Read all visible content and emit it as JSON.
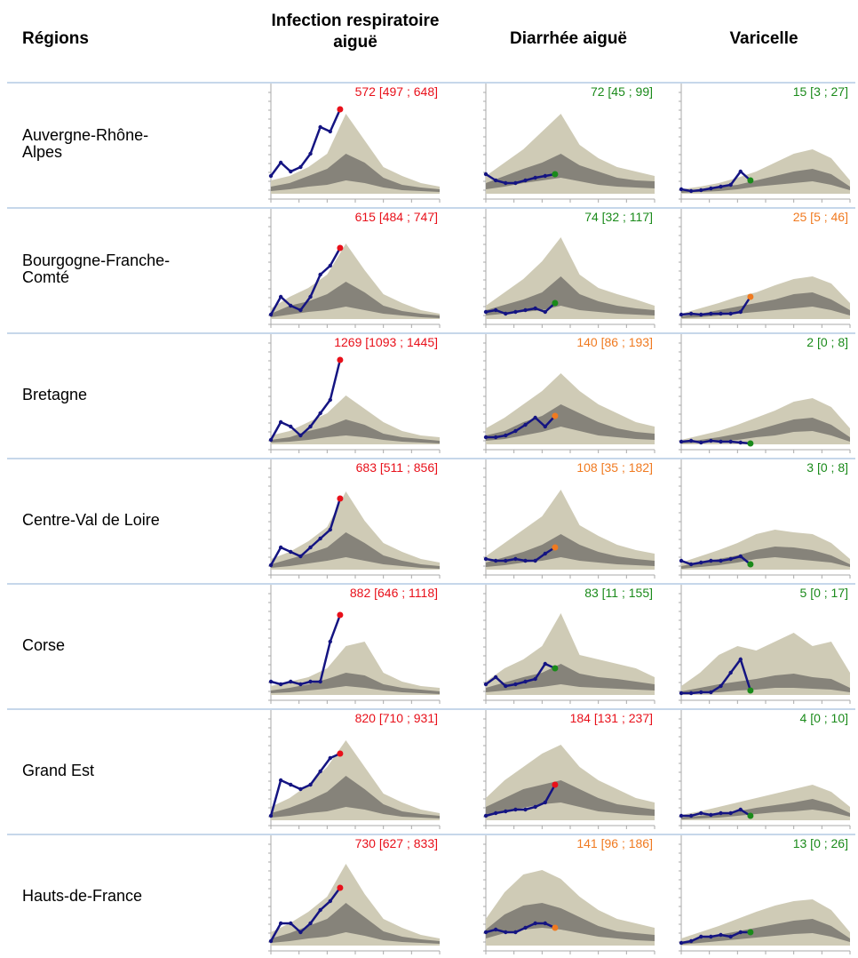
{
  "header": {
    "region": "Régions",
    "columns": [
      "Infection respiratoire aiguë",
      "Diarrhée aiguë",
      "Varicelle"
    ]
  },
  "rows": [
    {
      "region": "Auvergne-Rhône-Alpes",
      "cells": [
        {
          "label": "572 [497 ; 648]",
          "color": "#e8101a",
          "line": [
            20,
            35,
            25,
            30,
            45,
            75,
            70,
            95
          ],
          "outer": [
            15,
            20,
            30,
            45,
            90,
            60,
            30,
            20,
            12,
            8
          ],
          "inner_high": [
            8,
            12,
            20,
            28,
            45,
            35,
            18,
            10,
            7,
            5
          ],
          "inner_low": [
            3,
            5,
            8,
            10,
            15,
            12,
            7,
            4,
            3,
            2
          ]
        },
        {
          "label": "72 [45 ; 99]",
          "color": "#1a8a1a",
          "line": [
            22,
            15,
            12,
            12,
            15,
            18,
            20,
            22
          ],
          "outer": [
            20,
            35,
            50,
            70,
            90,
            55,
            40,
            30,
            25,
            20
          ],
          "inner_high": [
            12,
            20,
            28,
            35,
            45,
            32,
            25,
            18,
            15,
            14
          ],
          "inner_low": [
            5,
            8,
            12,
            15,
            18,
            14,
            10,
            8,
            7,
            6
          ]
        },
        {
          "label": "15 [3 ; 27]",
          "color": "#1a8a1a",
          "line": [
            5,
            3,
            4,
            6,
            8,
            10,
            25,
            15
          ],
          "outer": [
            5,
            8,
            12,
            18,
            25,
            35,
            45,
            50,
            40,
            15
          ],
          "inner_high": [
            3,
            5,
            8,
            10,
            15,
            20,
            25,
            28,
            22,
            8
          ],
          "inner_low": [
            1,
            2,
            3,
            5,
            8,
            10,
            12,
            14,
            10,
            4
          ]
        }
      ]
    },
    {
      "region": "Bourgogne-Franche-Comté",
      "cells": [
        {
          "label": "615 [484 ; 747]",
          "color": "#e8101a",
          "line": [
            5,
            25,
            15,
            10,
            25,
            50,
            60,
            80
          ],
          "outer": [
            12,
            25,
            35,
            50,
            85,
            55,
            28,
            18,
            10,
            6
          ],
          "inner_high": [
            6,
            15,
            20,
            28,
            42,
            30,
            15,
            9,
            6,
            4
          ],
          "inner_low": [
            2,
            5,
            8,
            10,
            14,
            10,
            6,
            4,
            2,
            1
          ]
        },
        {
          "label": "74 [32 ; 117]",
          "color": "#1a8a1a",
          "line": [
            8,
            10,
            6,
            8,
            10,
            12,
            8,
            18
          ],
          "outer": [
            15,
            30,
            45,
            65,
            92,
            50,
            35,
            28,
            22,
            15
          ],
          "inner_high": [
            10,
            16,
            22,
            30,
            48,
            28,
            20,
            15,
            12,
            10
          ],
          "inner_low": [
            4,
            6,
            8,
            10,
            15,
            10,
            8,
            6,
            5,
            4
          ]
        },
        {
          "label": "25 [5 ; 46]",
          "color": "#f07a20",
          "line": [
            5,
            6,
            5,
            6,
            6,
            6,
            8,
            25
          ],
          "outer": [
            6,
            12,
            18,
            25,
            30,
            38,
            45,
            48,
            40,
            18
          ],
          "inner_high": [
            3,
            6,
            10,
            14,
            18,
            22,
            28,
            30,
            22,
            10
          ],
          "inner_low": [
            1,
            2,
            4,
            6,
            8,
            10,
            12,
            14,
            10,
            4
          ]
        }
      ]
    },
    {
      "region": "Bretagne",
      "cells": [
        {
          "label": "1269 [1093 ; 1445]",
          "color": "#e8101a",
          "line": [
            5,
            25,
            20,
            10,
            20,
            35,
            50,
            95
          ],
          "outer": [
            10,
            15,
            25,
            35,
            55,
            40,
            25,
            15,
            10,
            8
          ],
          "inner_high": [
            5,
            8,
            15,
            20,
            28,
            22,
            12,
            8,
            6,
            4
          ],
          "inner_low": [
            2,
            3,
            5,
            8,
            10,
            8,
            5,
            3,
            2,
            1
          ]
        },
        {
          "label": "140 [86 ; 193]",
          "color": "#f07a20",
          "line": [
            8,
            8,
            10,
            15,
            22,
            30,
            20,
            32
          ],
          "outer": [
            18,
            30,
            45,
            60,
            80,
            60,
            45,
            35,
            25,
            20
          ],
          "inner_high": [
            10,
            15,
            25,
            32,
            45,
            35,
            25,
            18,
            14,
            12
          ],
          "inner_low": [
            4,
            6,
            10,
            14,
            20,
            15,
            10,
            8,
            6,
            5
          ]
        },
        {
          "label": "2 [0 ; 8]",
          "color": "#1a8a1a",
          "line": [
            3,
            4,
            2,
            4,
            3,
            3,
            2,
            1
          ],
          "outer": [
            5,
            10,
            15,
            22,
            30,
            38,
            48,
            52,
            42,
            18
          ],
          "inner_high": [
            2,
            5,
            8,
            12,
            16,
            22,
            28,
            30,
            22,
            8
          ],
          "inner_low": [
            1,
            2,
            3,
            5,
            8,
            10,
            14,
            15,
            10,
            3
          ]
        }
      ]
    },
    {
      "region": "Centre-Val de Loire",
      "cells": [
        {
          "label": "683 [511 ; 856]",
          "color": "#e8101a",
          "line": [
            5,
            25,
            20,
            15,
            25,
            35,
            45,
            80
          ],
          "outer": [
            12,
            20,
            32,
            48,
            88,
            55,
            30,
            20,
            12,
            8
          ],
          "inner_high": [
            6,
            12,
            18,
            25,
            42,
            30,
            16,
            10,
            6,
            4
          ],
          "inner_low": [
            2,
            4,
            7,
            10,
            14,
            10,
            6,
            4,
            2,
            1
          ]
        },
        {
          "label": "108 [35 ; 182]",
          "color": "#f07a20",
          "line": [
            12,
            10,
            10,
            12,
            10,
            10,
            18,
            25
          ],
          "outer": [
            15,
            30,
            45,
            60,
            90,
            50,
            38,
            28,
            22,
            18
          ],
          "inner_high": [
            8,
            14,
            20,
            28,
            40,
            28,
            20,
            15,
            12,
            10
          ],
          "inner_low": [
            3,
            5,
            8,
            10,
            14,
            10,
            8,
            6,
            5,
            4
          ]
        },
        {
          "label": "3 [0 ; 8]",
          "color": "#1a8a1a",
          "line": [
            10,
            6,
            8,
            10,
            10,
            12,
            15,
            6
          ],
          "outer": [
            8,
            15,
            22,
            30,
            40,
            45,
            42,
            40,
            30,
            12
          ],
          "inner_high": [
            4,
            8,
            12,
            16,
            22,
            26,
            25,
            22,
            16,
            6
          ],
          "inner_low": [
            1,
            3,
            5,
            8,
            12,
            14,
            12,
            10,
            8,
            3
          ]
        }
      ]
    },
    {
      "region": "Corse",
      "cells": [
        {
          "label": "882 [646 ; 1118]",
          "color": "#e8101a",
          "line": [
            15,
            12,
            15,
            12,
            15,
            15,
            60,
            90
          ],
          "outer": [
            10,
            15,
            20,
            30,
            55,
            60,
            25,
            15,
            10,
            8
          ],
          "inner_high": [
            5,
            8,
            12,
            18,
            25,
            22,
            12,
            8,
            6,
            4
          ],
          "inner_low": [
            2,
            3,
            5,
            7,
            10,
            8,
            5,
            3,
            2,
            1
          ]
        },
        {
          "label": "83 [11 ; 155]",
          "color": "#1a8a1a",
          "line": [
            12,
            20,
            10,
            12,
            15,
            18,
            35,
            30
          ],
          "outer": [
            15,
            30,
            40,
            55,
            92,
            45,
            40,
            35,
            30,
            20
          ],
          "inner_high": [
            8,
            14,
            20,
            25,
            35,
            24,
            20,
            18,
            15,
            12
          ],
          "inner_low": [
            3,
            5,
            7,
            9,
            12,
            9,
            8,
            7,
            6,
            5
          ]
        },
        {
          "label": "5 [0 ; 17]",
          "color": "#1a8a1a",
          "line": [
            2,
            2,
            3,
            3,
            10,
            25,
            40,
            5
          ],
          "outer": [
            10,
            25,
            45,
            55,
            50,
            60,
            70,
            55,
            60,
            25
          ],
          "inner_high": [
            4,
            8,
            12,
            15,
            18,
            22,
            24,
            20,
            18,
            8
          ],
          "inner_low": [
            1,
            2,
            3,
            5,
            6,
            8,
            8,
            7,
            6,
            3
          ]
        }
      ]
    },
    {
      "region": "Grand Est",
      "cells": [
        {
          "label": "820 [710 ; 931]",
          "color": "#e8101a",
          "line": [
            5,
            45,
            40,
            35,
            40,
            55,
            70,
            75
          ],
          "outer": [
            15,
            25,
            40,
            60,
            90,
            60,
            30,
            20,
            12,
            8
          ],
          "inner_high": [
            8,
            14,
            22,
            32,
            50,
            35,
            18,
            10,
            7,
            5
          ],
          "inner_low": [
            3,
            5,
            8,
            10,
            15,
            12,
            7,
            4,
            3,
            2
          ]
        },
        {
          "label": "184 [131 ; 237]",
          "color": "#e8101a",
          "line": [
            5,
            8,
            10,
            12,
            12,
            15,
            20,
            40
          ],
          "outer": [
            25,
            45,
            60,
            75,
            85,
            60,
            45,
            35,
            25,
            20
          ],
          "inner_high": [
            15,
            25,
            35,
            40,
            45,
            35,
            25,
            18,
            15,
            12
          ],
          "inner_low": [
            6,
            10,
            14,
            18,
            20,
            15,
            10,
            8,
            6,
            5
          ]
        },
        {
          "label": "4 [0 ; 10]",
          "color": "#1a8a1a",
          "line": [
            5,
            5,
            8,
            6,
            8,
            8,
            12,
            5
          ],
          "outer": [
            6,
            10,
            15,
            20,
            25,
            30,
            35,
            40,
            32,
            15
          ],
          "inner_high": [
            3,
            5,
            8,
            10,
            14,
            17,
            20,
            24,
            18,
            8
          ],
          "inner_low": [
            1,
            2,
            3,
            5,
            7,
            9,
            10,
            12,
            9,
            4
          ]
        }
      ]
    },
    {
      "region": "Hauts-de-France",
      "cells": [
        {
          "label": "730 [627 ; 833]",
          "color": "#e8101a",
          "line": [
            5,
            25,
            25,
            15,
            25,
            40,
            50,
            65
          ],
          "outer": [
            15,
            25,
            38,
            55,
            92,
            58,
            30,
            20,
            12,
            8
          ],
          "inner_high": [
            8,
            14,
            22,
            30,
            48,
            32,
            16,
            10,
            7,
            5
          ],
          "inner_low": [
            3,
            5,
            8,
            10,
            15,
            11,
            6,
            4,
            3,
            2
          ]
        },
        {
          "label": "141 [96 ; 186]",
          "color": "#f07a20",
          "line": [
            15,
            18,
            15,
            15,
            20,
            25,
            25,
            20
          ],
          "outer": [
            30,
            60,
            80,
            85,
            75,
            55,
            40,
            30,
            25,
            20
          ],
          "inner_high": [
            18,
            35,
            45,
            48,
            42,
            32,
            22,
            16,
            14,
            12
          ],
          "inner_low": [
            8,
            14,
            18,
            20,
            18,
            14,
            10,
            8,
            6,
            5
          ]
        },
        {
          "label": "13 [0 ; 26]",
          "color": "#1a8a1a",
          "line": [
            3,
            5,
            10,
            10,
            12,
            10,
            15,
            15
          ],
          "outer": [
            8,
            15,
            22,
            30,
            38,
            45,
            50,
            52,
            40,
            15
          ],
          "inner_high": [
            4,
            8,
            12,
            16,
            20,
            24,
            28,
            30,
            22,
            8
          ],
          "inner_low": [
            1,
            3,
            5,
            7,
            9,
            11,
            13,
            14,
            10,
            4
          ]
        }
      ]
    }
  ]
}
